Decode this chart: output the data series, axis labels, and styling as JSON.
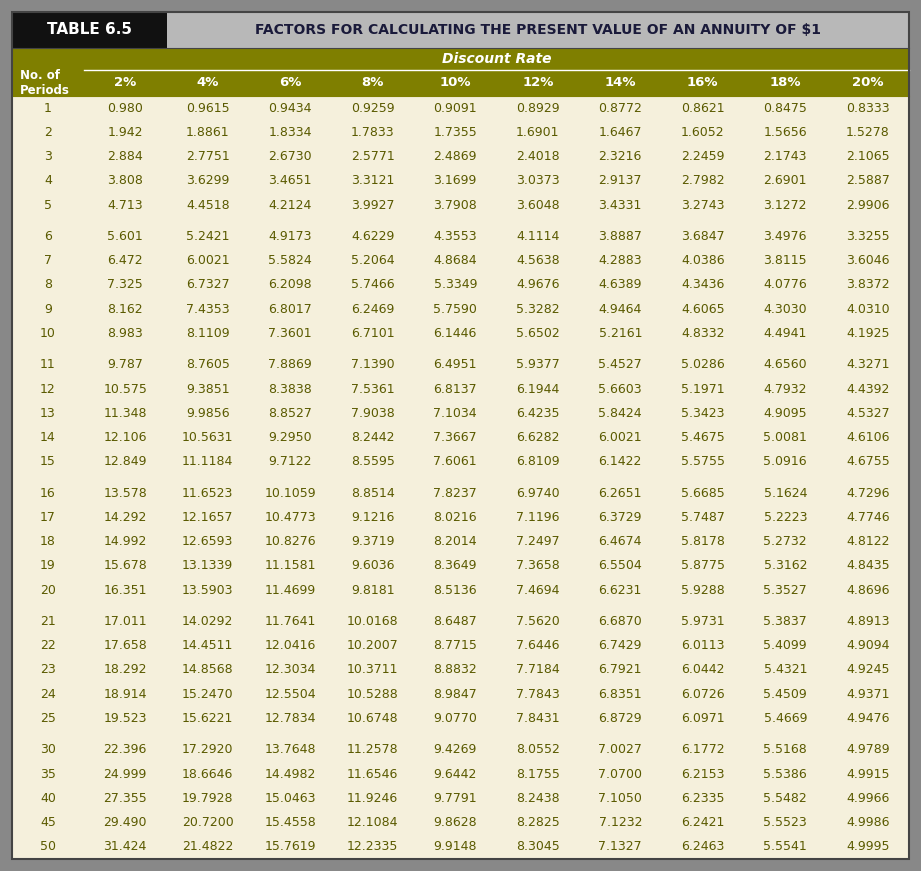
{
  "title_left": "TABLE 6.5",
  "title_right": "FACTORS FOR CALCULATING THE PRESENT VALUE OF AN ANNUITY OF $1",
  "header_group": "Discount Rate",
  "col_headers": [
    "No. of\nPeriods",
    "2%",
    "4%",
    "6%",
    "8%",
    "10%",
    "12%",
    "14%",
    "16%",
    "18%",
    "20%"
  ],
  "rows": [
    [
      "1",
      "0.980",
      "0.9615",
      "0.9434",
      "0.9259",
      "0.9091",
      "0.8929",
      "0.8772",
      "0.8621",
      "0.8475",
      "0.8333"
    ],
    [
      "2",
      "1.942",
      "1.8861",
      "1.8334",
      "1.7833",
      "1.7355",
      "1.6901",
      "1.6467",
      "1.6052",
      "1.5656",
      "1.5278"
    ],
    [
      "3",
      "2.884",
      "2.7751",
      "2.6730",
      "2.5771",
      "2.4869",
      "2.4018",
      "2.3216",
      "2.2459",
      "2.1743",
      "2.1065"
    ],
    [
      "4",
      "3.808",
      "3.6299",
      "3.4651",
      "3.3121",
      "3.1699",
      "3.0373",
      "2.9137",
      "2.7982",
      "2.6901",
      "2.5887"
    ],
    [
      "5",
      "4.713",
      "4.4518",
      "4.2124",
      "3.9927",
      "3.7908",
      "3.6048",
      "3.4331",
      "3.2743",
      "3.1272",
      "2.9906"
    ],
    [
      "6",
      "5.601",
      "5.2421",
      "4.9173",
      "4.6229",
      "4.3553",
      "4.1114",
      "3.8887",
      "3.6847",
      "3.4976",
      "3.3255"
    ],
    [
      "7",
      "6.472",
      "6.0021",
      "5.5824",
      "5.2064",
      "4.8684",
      "4.5638",
      "4.2883",
      "4.0386",
      "3.8115",
      "3.6046"
    ],
    [
      "8",
      "7.325",
      "6.7327",
      "6.2098",
      "5.7466",
      "5.3349",
      "4.9676",
      "4.6389",
      "4.3436",
      "4.0776",
      "3.8372"
    ],
    [
      "9",
      "8.162",
      "7.4353",
      "6.8017",
      "6.2469",
      "5.7590",
      "5.3282",
      "4.9464",
      "4.6065",
      "4.3030",
      "4.0310"
    ],
    [
      "10",
      "8.983",
      "8.1109",
      "7.3601",
      "6.7101",
      "6.1446",
      "5.6502",
      "5.2161",
      "4.8332",
      "4.4941",
      "4.1925"
    ],
    [
      "11",
      "9.787",
      "8.7605",
      "7.8869",
      "7.1390",
      "6.4951",
      "5.9377",
      "5.4527",
      "5.0286",
      "4.6560",
      "4.3271"
    ],
    [
      "12",
      "10.575",
      "9.3851",
      "8.3838",
      "7.5361",
      "6.8137",
      "6.1944",
      "5.6603",
      "5.1971",
      "4.7932",
      "4.4392"
    ],
    [
      "13",
      "11.348",
      "9.9856",
      "8.8527",
      "7.9038",
      "7.1034",
      "6.4235",
      "5.8424",
      "5.3423",
      "4.9095",
      "4.5327"
    ],
    [
      "14",
      "12.106",
      "10.5631",
      "9.2950",
      "8.2442",
      "7.3667",
      "6.6282",
      "6.0021",
      "5.4675",
      "5.0081",
      "4.6106"
    ],
    [
      "15",
      "12.849",
      "11.1184",
      "9.7122",
      "8.5595",
      "7.6061",
      "6.8109",
      "6.1422",
      "5.5755",
      "5.0916",
      "4.6755"
    ],
    [
      "16",
      "13.578",
      "11.6523",
      "10.1059",
      "8.8514",
      "7.8237",
      "6.9740",
      "6.2651",
      "5.6685",
      "5.1624",
      "4.7296"
    ],
    [
      "17",
      "14.292",
      "12.1657",
      "10.4773",
      "9.1216",
      "8.0216",
      "7.1196",
      "6.3729",
      "5.7487",
      "5.2223",
      "4.7746"
    ],
    [
      "18",
      "14.992",
      "12.6593",
      "10.8276",
      "9.3719",
      "8.2014",
      "7.2497",
      "6.4674",
      "5.8178",
      "5.2732",
      "4.8122"
    ],
    [
      "19",
      "15.678",
      "13.1339",
      "11.1581",
      "9.6036",
      "8.3649",
      "7.3658",
      "6.5504",
      "5.8775",
      "5.3162",
      "4.8435"
    ],
    [
      "20",
      "16.351",
      "13.5903",
      "11.4699",
      "9.8181",
      "8.5136",
      "7.4694",
      "6.6231",
      "5.9288",
      "5.3527",
      "4.8696"
    ],
    [
      "21",
      "17.011",
      "14.0292",
      "11.7641",
      "10.0168",
      "8.6487",
      "7.5620",
      "6.6870",
      "5.9731",
      "5.3837",
      "4.8913"
    ],
    [
      "22",
      "17.658",
      "14.4511",
      "12.0416",
      "10.2007",
      "8.7715",
      "7.6446",
      "6.7429",
      "6.0113",
      "5.4099",
      "4.9094"
    ],
    [
      "23",
      "18.292",
      "14.8568",
      "12.3034",
      "10.3711",
      "8.8832",
      "7.7184",
      "6.7921",
      "6.0442",
      "5.4321",
      "4.9245"
    ],
    [
      "24",
      "18.914",
      "15.2470",
      "12.5504",
      "10.5288",
      "8.9847",
      "7.7843",
      "6.8351",
      "6.0726",
      "5.4509",
      "4.9371"
    ],
    [
      "25",
      "19.523",
      "15.6221",
      "12.7834",
      "10.6748",
      "9.0770",
      "7.8431",
      "6.8729",
      "6.0971",
      "5.4669",
      "4.9476"
    ],
    [
      "30",
      "22.396",
      "17.2920",
      "13.7648",
      "11.2578",
      "9.4269",
      "8.0552",
      "7.0027",
      "6.1772",
      "5.5168",
      "4.9789"
    ],
    [
      "35",
      "24.999",
      "18.6646",
      "14.4982",
      "11.6546",
      "9.6442",
      "8.1755",
      "7.0700",
      "6.2153",
      "5.5386",
      "4.9915"
    ],
    [
      "40",
      "27.355",
      "19.7928",
      "15.0463",
      "11.9246",
      "9.7791",
      "8.2438",
      "7.1050",
      "6.2335",
      "5.5482",
      "4.9966"
    ],
    [
      "45",
      "29.490",
      "20.7200",
      "15.4558",
      "12.1084",
      "9.8628",
      "8.2825",
      "7.1232",
      "6.2421",
      "5.5523",
      "4.9986"
    ],
    [
      "50",
      "31.424",
      "21.4822",
      "15.7619",
      "12.2335",
      "9.9148",
      "8.3045",
      "7.1327",
      "6.2463",
      "5.5541",
      "4.9995"
    ]
  ],
  "gap_after_periods": [
    5,
    10,
    15,
    20,
    25
  ],
  "color_header_bg": "#7f7f00",
  "color_header_fg": "#ffffff",
  "color_title_left_bg": "#111111",
  "color_title_left_fg": "#ffffff",
  "color_title_right_bg": "#b8b8b8",
  "color_title_right_fg": "#1a1a3a",
  "color_body_bg": "#f5f0dc",
  "color_body_fg": "#5a5a00",
  "color_outer_bg": "#888888",
  "outer_border_color": "#444444"
}
